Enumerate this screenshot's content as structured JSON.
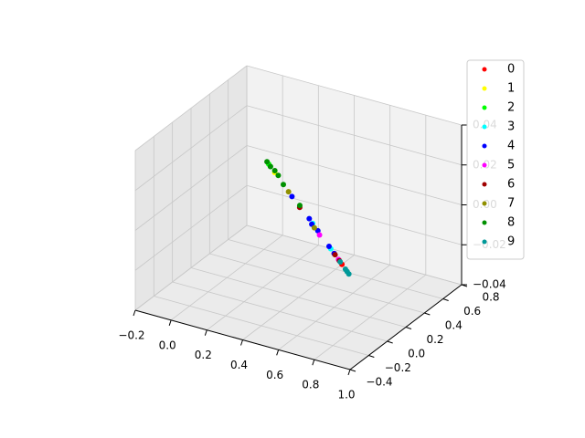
{
  "chart_data": {
    "type": "scatter",
    "projection": "3d",
    "xlim": [
      -0.2,
      1.0
    ],
    "ylim": [
      -0.4,
      0.8
    ],
    "zlim": [
      -0.04,
      0.04
    ],
    "xticks": [
      {
        "value": -0.2,
        "label": "−0.2"
      },
      {
        "value": 0.0,
        "label": "0.0"
      },
      0.2,
      0.4,
      0.6,
      0.8,
      {
        "value": 1.0,
        "label": "1.0"
      }
    ],
    "yticks": [
      {
        "value": -0.4,
        "label": "−0.4"
      },
      {
        "value": -0.2,
        "label": "−0.2"
      },
      {
        "value": 0.0,
        "label": "0.0"
      },
      0.2,
      0.4,
      0.6,
      0.8
    ],
    "zticks": [
      {
        "value": -0.04,
        "label": "−0.04"
      },
      {
        "value": -0.02,
        "label": "−0.02"
      },
      {
        "value": 0.0,
        "label": "0.00"
      },
      0.02,
      0.04
    ],
    "grid": true,
    "legend": "upper right",
    "series": [
      {
        "name": "0",
        "color": "#ff0000",
        "x": [
          0.74,
          0.83
        ],
        "y": [
          -0.07,
          -0.16
        ],
        "z": [
          0,
          0
        ]
      },
      {
        "name": "1",
        "color": "#ffff00",
        "x": [
          0.06
        ],
        "y": [
          0.6
        ],
        "z": [
          0
        ]
      },
      {
        "name": "2",
        "color": "#00ff00",
        "x": [
          0.01,
          -0.01
        ],
        "y": [
          0.65,
          0.67
        ],
        "z": [
          0,
          0
        ]
      },
      {
        "name": "3",
        "color": "#00ffff",
        "x": [
          0.49,
          0.7
        ],
        "y": [
          0.18,
          -0.03
        ],
        "z": [
          0,
          0
        ]
      },
      {
        "name": "4",
        "color": "#0000ff",
        "x": [
          0.26,
          0.45,
          0.49,
          0.55,
          0.68,
          0.74
        ],
        "y": [
          0.4,
          0.22,
          0.17,
          0.12,
          -0.01,
          -0.07
        ],
        "z": [
          0,
          0,
          0,
          0,
          0,
          0
        ]
      },
      {
        "name": "5",
        "color": "#ff00ff",
        "x": [
          0.58,
          0.79
        ],
        "y": [
          0.08,
          -0.12
        ],
        "z": [
          0,
          0
        ]
      },
      {
        "name": "6",
        "color": "#a00000",
        "x": [
          0.35,
          0.75,
          0.8
        ],
        "y": [
          0.31,
          -0.08,
          -0.13
        ],
        "z": [
          0,
          0,
          0
        ]
      },
      {
        "name": "7",
        "color": "#909000",
        "x": [
          0.22,
          0.52
        ],
        "y": [
          0.44,
          0.14
        ],
        "z": [
          0,
          0
        ]
      },
      {
        "name": "8",
        "color": "#009000",
        "x": [
          -0.03,
          0.01,
          0.05,
          0.09,
          0.16,
          0.34
        ],
        "y": [
          0.69,
          0.65,
          0.62,
          0.58,
          0.5,
          0.33
        ],
        "z": [
          0,
          0,
          0,
          0,
          0,
          0
        ]
      },
      {
        "name": "9",
        "color": "#009999",
        "x": [
          0.81,
          0.87,
          0.91,
          0.89
        ],
        "y": [
          -0.14,
          -0.2,
          -0.24,
          -0.22
        ],
        "z": [
          0,
          0,
          0,
          0
        ]
      }
    ]
  }
}
